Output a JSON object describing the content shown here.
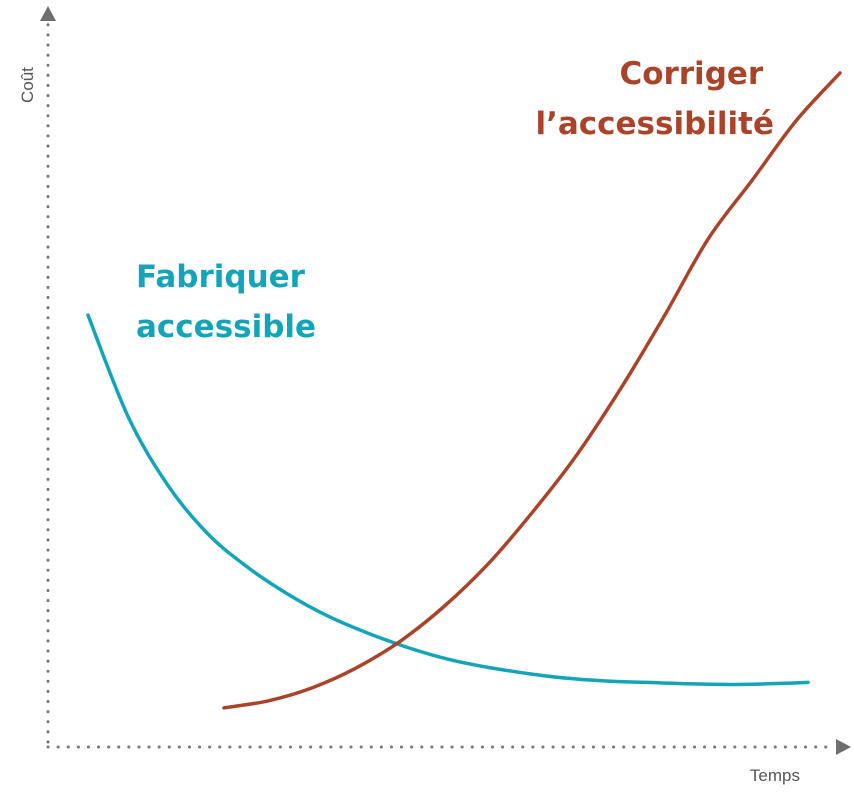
{
  "chart_data": {
    "type": "line",
    "title": "",
    "xlabel": "Temps",
    "ylabel": "Coût",
    "xlim": [
      0,
      10
    ],
    "ylim": [
      0,
      10
    ],
    "ticks": "none",
    "grid": false,
    "series": [
      {
        "name": "Fabriquer accessible",
        "label_lines": [
          "Fabriquer",
          "accessible"
        ],
        "color": "#13a4b8",
        "x": [
          0.5,
          1.0,
          1.5,
          2.0,
          2.5,
          3.0,
          3.5,
          4.0,
          4.5,
          5.0,
          5.5,
          6.0,
          6.5,
          7.0,
          7.5,
          8.0,
          8.5,
          9.0,
          9.5
        ],
        "y": [
          6.46,
          4.98,
          3.97,
          3.26,
          2.77,
          2.38,
          2.06,
          1.81,
          1.6,
          1.43,
          1.31,
          1.22,
          1.15,
          1.11,
          1.09,
          1.07,
          1.06,
          1.07,
          1.09
        ]
      },
      {
        "name": "Corriger l’accessibilité",
        "label_lines": [
          "Corriger",
          "l’accessibilité"
        ],
        "color": "#a9432a",
        "x": [
          2.2,
          2.75,
          3.3,
          3.85,
          4.4,
          4.95,
          5.5,
          6.05,
          6.6,
          7.15,
          7.7,
          8.25,
          8.8,
          9.35,
          9.9
        ],
        "y": [
          0.72,
          0.82,
          1.01,
          1.3,
          1.69,
          2.2,
          2.82,
          3.57,
          4.4,
          5.37,
          6.44,
          7.57,
          8.43,
          9.3,
          10.0
        ]
      }
    ]
  }
}
